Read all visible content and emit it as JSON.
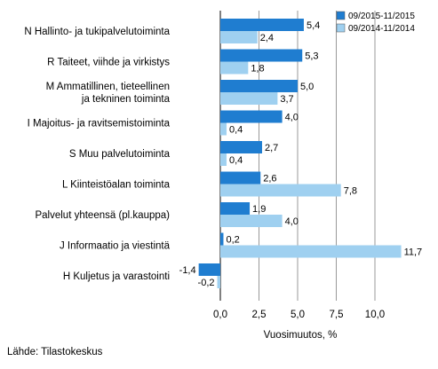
{
  "chart_data": {
    "type": "bar",
    "orientation": "horizontal",
    "categories": [
      [
        "N Hallinto- ja tukipalvelutoiminta"
      ],
      [
        "R Taiteet, viihde ja virkistys"
      ],
      [
        "M Ammatillinen, tieteellinen",
        "ja tekninen toiminta"
      ],
      [
        "I Majoitus- ja ravitsemistoiminta"
      ],
      [
        "S Muu palvelutoiminta"
      ],
      [
        "L Kiinteistöalan toiminta"
      ],
      [
        "Palvelut yhteensä (pl.kauppa)"
      ],
      [
        "J Informaatio ja viestintä"
      ],
      [
        "H Kuljetus ja varastointi"
      ]
    ],
    "series": [
      {
        "name": "09/2015-11/2015",
        "color": "#1f7dd0",
        "values": [
          5.4,
          5.3,
          5.0,
          4.0,
          2.7,
          2.6,
          1.9,
          0.2,
          -1.4
        ],
        "labels": [
          "5,4",
          "5,3",
          "5,0",
          "4,0",
          "2,7",
          "2,6",
          "1,9",
          "0,2",
          "-1,4"
        ]
      },
      {
        "name": "09/2014-11/2014",
        "color": "#9fd0f0",
        "values": [
          2.4,
          1.8,
          3.7,
          0.4,
          0.4,
          7.8,
          4.0,
          11.7,
          -0.2
        ],
        "labels": [
          "2,4",
          "1,8",
          "3,7",
          "0,4",
          "0,4",
          "7,8",
          "4,0",
          "11,7",
          "-0,2"
        ]
      }
    ],
    "xticks": [
      0,
      2.5,
      5,
      7.5,
      10
    ],
    "xtick_labels": [
      "0,0",
      "2,5",
      "5,0",
      "7,5",
      "10,0"
    ],
    "xlim": [
      -2.5,
      12.3
    ],
    "xlabel": "Vuosimuutos, %",
    "grid": true,
    "legend_position": "top-right"
  },
  "source": "Lähde: Tilastokeskus"
}
